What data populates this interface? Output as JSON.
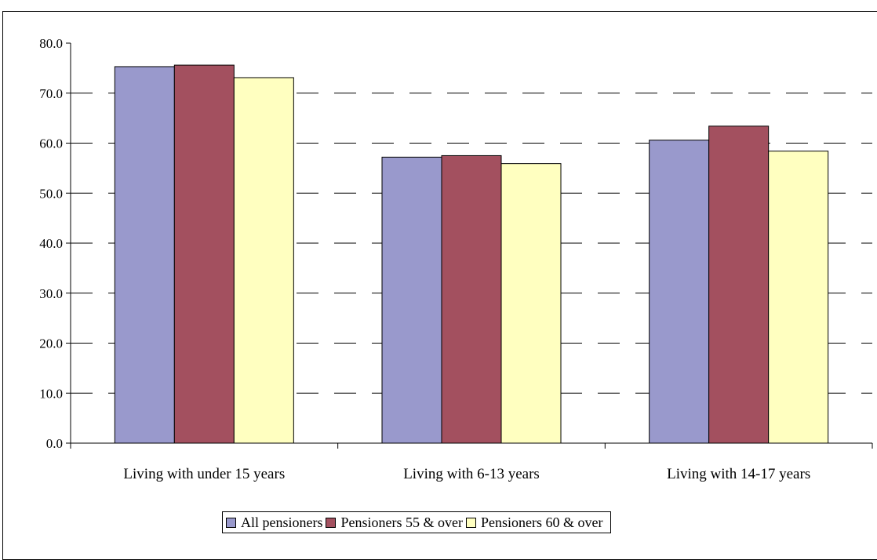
{
  "chart_data": {
    "type": "bar",
    "categories": [
      "Living with under 15 years",
      "Living with 6-13 years",
      "Living with 14-17 years"
    ],
    "series": [
      {
        "name": "All pensioners",
        "values": [
          75.3,
          57.2,
          60.6
        ],
        "color": "#9999CC"
      },
      {
        "name": "Pensioners 55 & over",
        "values": [
          75.6,
          57.5,
          63.4
        ],
        "color": "#A3505F"
      },
      {
        "name": "Pensioners 60 & over",
        "values": [
          73.1,
          55.9,
          58.4
        ],
        "color": "#FFFFC0"
      }
    ],
    "title": "",
    "xlabel": "",
    "ylabel": "",
    "ylim": [
      0,
      80
    ],
    "yticks": [
      "0.0",
      "10.0",
      "20.0",
      "30.0",
      "40.0",
      "50.0",
      "60.0",
      "70.0",
      "80.0"
    ],
    "grid": true,
    "legend_position": "bottom"
  }
}
